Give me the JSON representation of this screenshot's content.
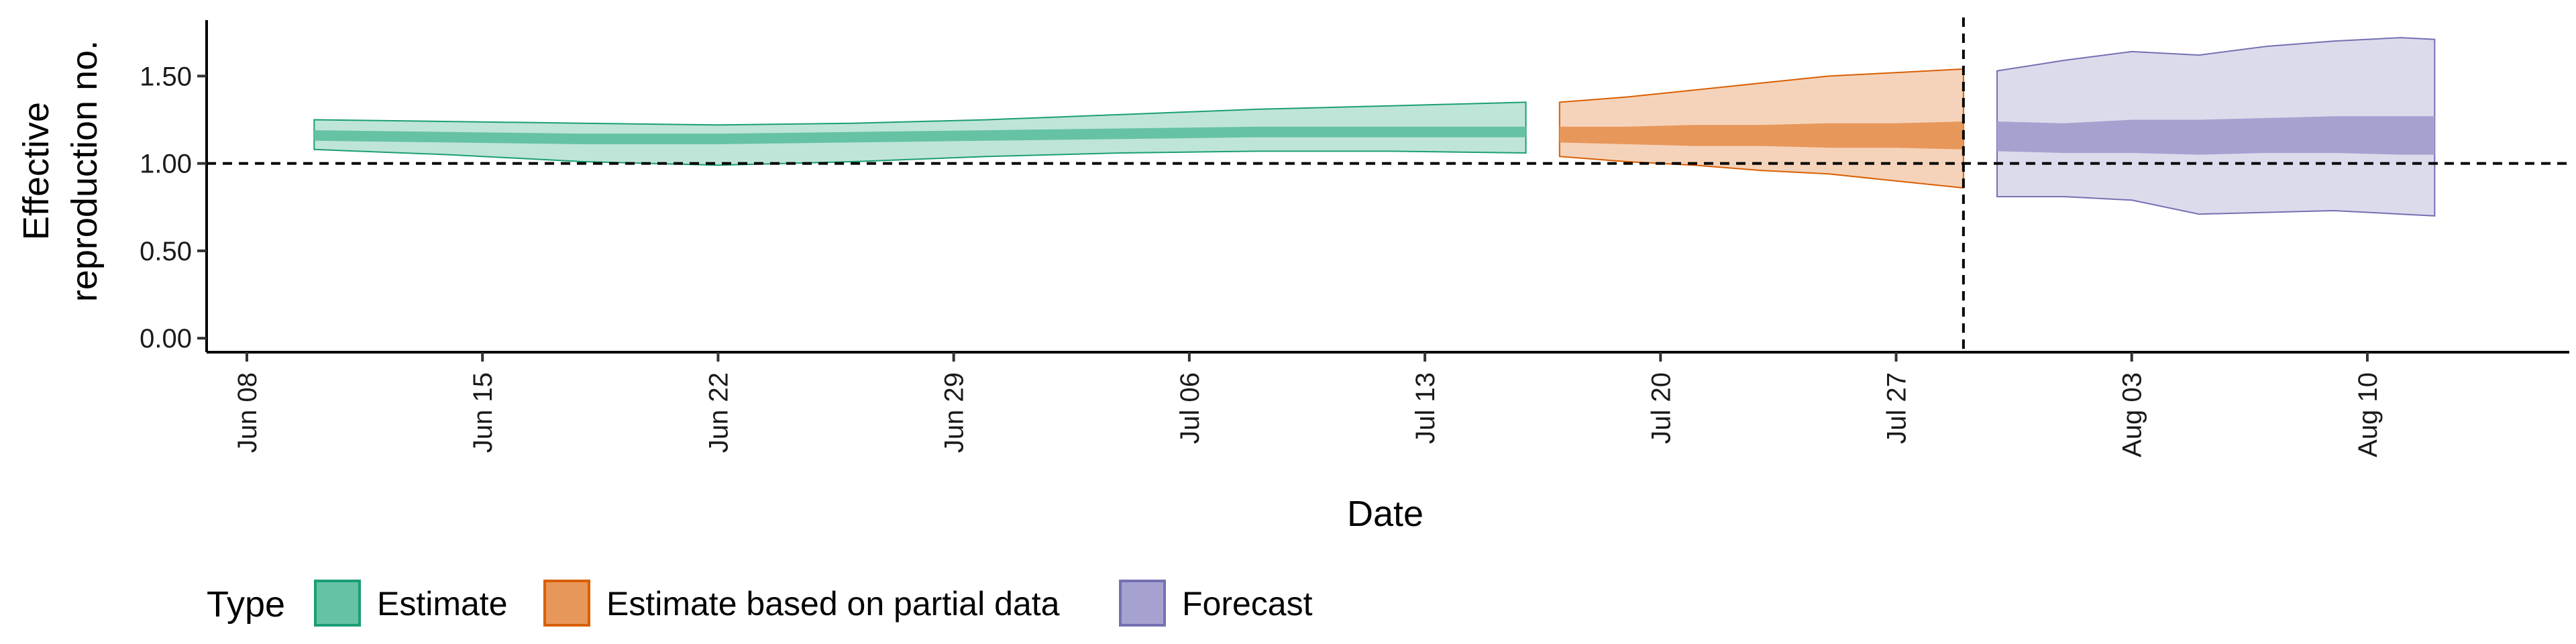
{
  "chart_data": {
    "type": "area",
    "xlabel": "Date",
    "ylabel_lines": [
      "Effective",
      "reproduction no."
    ],
    "x_ticks": [
      "Jun 08",
      "Jun 15",
      "Jun 22",
      "Jun 29",
      "Jul 06",
      "Jul 13",
      "Jul 20",
      "Jul 27",
      "Aug 03",
      "Aug 10"
    ],
    "x_tick_dates": [
      "2020-06-08",
      "2020-06-15",
      "2020-06-22",
      "2020-06-29",
      "2020-07-06",
      "2020-07-13",
      "2020-07-20",
      "2020-07-27",
      "2020-08-03",
      "2020-08-10"
    ],
    "y_ticks": [
      "0.00",
      "0.50",
      "1.00",
      "1.50"
    ],
    "y_tick_values": [
      0,
      0.5,
      1.0,
      1.5
    ],
    "ylim": [
      -0.08,
      1.82
    ],
    "xlim": [
      "2020-06-08",
      "2020-08-16"
    ],
    "reference_lines": {
      "y": 1.0,
      "x": "2020-07-29"
    },
    "grid": false,
    "legend": {
      "title": "Type",
      "position": "bottom",
      "items": [
        {
          "label": "Estimate",
          "fill": "#66c2a5",
          "stroke": "#1b9e77"
        },
        {
          "label": "Estimate based on partial data",
          "fill": "#e8975a",
          "stroke": "#d95f02"
        },
        {
          "label": "Forecast",
          "fill": "#a6a2d0",
          "stroke": "#7570b3"
        }
      ]
    },
    "series": [
      {
        "name": "Estimate",
        "color": "#1b9e77",
        "outer_fill": "#bfe5d8",
        "inner_fill": "#66c2a5",
        "x": [
          "2020-06-10",
          "2020-06-14",
          "2020-06-18",
          "2020-06-22",
          "2020-06-26",
          "2020-06-30",
          "2020-07-04",
          "2020-07-08",
          "2020-07-12",
          "2020-07-16"
        ],
        "lower90": [
          1.08,
          1.05,
          1.01,
          0.99,
          1.01,
          1.04,
          1.06,
          1.07,
          1.07,
          1.06
        ],
        "upper90": [
          1.25,
          1.24,
          1.23,
          1.22,
          1.23,
          1.25,
          1.28,
          1.31,
          1.33,
          1.35
        ],
        "lower50": [
          1.13,
          1.12,
          1.11,
          1.11,
          1.12,
          1.13,
          1.14,
          1.15,
          1.15,
          1.15
        ],
        "upper50": [
          1.19,
          1.18,
          1.17,
          1.17,
          1.18,
          1.19,
          1.2,
          1.21,
          1.21,
          1.21
        ]
      },
      {
        "name": "Estimate based on partial data",
        "color": "#d95f02",
        "outer_fill": "#f5d3ba",
        "inner_fill": "#e8975a",
        "x": [
          "2020-07-17",
          "2020-07-19",
          "2020-07-21",
          "2020-07-23",
          "2020-07-25",
          "2020-07-27",
          "2020-07-29"
        ],
        "lower90": [
          1.04,
          1.01,
          0.99,
          0.96,
          0.94,
          0.9,
          0.86
        ],
        "upper90": [
          1.35,
          1.38,
          1.42,
          1.46,
          1.5,
          1.52,
          1.54
        ],
        "lower50": [
          1.12,
          1.11,
          1.1,
          1.1,
          1.09,
          1.09,
          1.08
        ],
        "upper50": [
          1.21,
          1.21,
          1.22,
          1.22,
          1.23,
          1.23,
          1.24
        ]
      },
      {
        "name": "Forecast",
        "color": "#7570b3",
        "outer_fill": "#dcdbec",
        "inner_fill": "#a6a2d0",
        "x": [
          "2020-07-30",
          "2020-08-01",
          "2020-08-03",
          "2020-08-05",
          "2020-08-07",
          "2020-08-09",
          "2020-08-11",
          "2020-08-12"
        ],
        "lower90": [
          0.81,
          0.81,
          0.79,
          0.71,
          0.72,
          0.73,
          0.71,
          0.7
        ],
        "upper90": [
          1.53,
          1.59,
          1.64,
          1.62,
          1.67,
          1.7,
          1.72,
          1.71
        ],
        "lower50": [
          1.07,
          1.06,
          1.06,
          1.05,
          1.06,
          1.06,
          1.05,
          1.05
        ],
        "upper50": [
          1.24,
          1.23,
          1.25,
          1.25,
          1.26,
          1.27,
          1.27,
          1.27
        ]
      }
    ]
  }
}
